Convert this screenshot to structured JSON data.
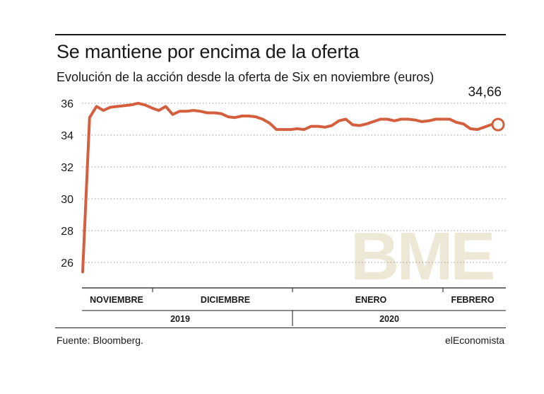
{
  "header": {
    "title": "Se mantiene por encima de la oferta",
    "subtitle": "Evolución de la acción desde la oferta de Six en noviembre (euros)",
    "last_value": "34,66"
  },
  "footer": {
    "source": "Fuente: Bloomberg.",
    "brand": "elEconomista"
  },
  "watermark": "BME",
  "colors": {
    "line": "#d35f3e",
    "grid": "#999999",
    "watermark": "#ede8d6"
  },
  "chart_data": {
    "type": "line",
    "title": "Se mantiene por encima de la oferta",
    "subtitle": "Evolución de la acción desde la oferta de Six en noviembre (euros)",
    "ylim": [
      25,
      36.5
    ],
    "yticks": [
      26,
      28,
      30,
      32,
      34,
      36
    ],
    "ytick_labels": [
      "26",
      "28",
      "30",
      "32",
      "34",
      "36"
    ],
    "grid": true,
    "months": [
      "NOVIEMBRE",
      "DICIEMBRE",
      "ENERO",
      "FEBRERO"
    ],
    "years": [
      "2019",
      "2020"
    ],
    "last_label": "34,66",
    "series": [
      {
        "values": [
          25.4,
          35.1,
          35.8,
          35.55,
          35.75,
          35.8,
          35.85,
          35.9,
          36.0,
          35.9,
          35.7,
          35.55,
          35.8,
          35.3,
          35.5,
          35.5,
          35.55,
          35.5,
          35.4,
          35.4,
          35.35,
          35.15,
          35.1,
          35.2,
          35.2,
          35.15,
          35.0,
          34.75,
          34.35,
          34.35,
          34.35,
          34.4,
          34.35,
          34.55,
          34.55,
          34.5,
          34.6,
          34.9,
          35.0,
          34.65,
          34.6,
          34.7,
          34.85,
          35.0,
          35.0,
          34.9,
          35.0,
          35.0,
          34.95,
          34.85,
          34.9,
          35.0,
          35.0,
          35.0,
          34.8,
          34.7,
          34.4,
          34.35,
          34.5,
          34.66,
          34.66
        ]
      }
    ]
  }
}
